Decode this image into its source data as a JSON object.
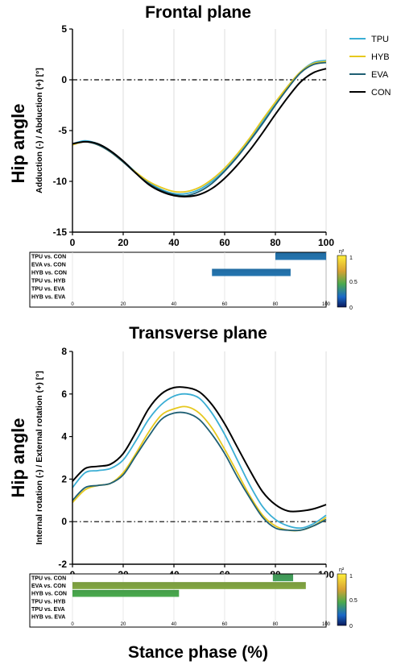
{
  "figure": {
    "xlabel": "Stance phase (%)",
    "side_label": "Hip angle",
    "legend": [
      "TPU",
      "HYB",
      "EVA",
      "CON"
    ]
  },
  "colors": {
    "TPU": "#3aaed4",
    "HYB": "#e6c81e",
    "EVA": "#1f5f73",
    "CON": "#000000"
  },
  "colorbar": {
    "symbol": "η²",
    "ticks": [
      "1",
      "0.5",
      "0"
    ]
  },
  "chart_data": [
    {
      "type": "line",
      "title": "Frontal plane",
      "ylabel": "Adduction (-) / Abduction (+) [°]",
      "xlim": [
        0,
        100
      ],
      "ylim": [
        -15,
        5
      ],
      "yticks": [
        "5",
        "0",
        "-5",
        "-10",
        "-15"
      ],
      "xticks": [
        "0",
        "20",
        "40",
        "60",
        "80",
        "100"
      ],
      "grid": "vertical",
      "legend_position": "top-right",
      "zero_line": true,
      "x": [
        0,
        5,
        10,
        15,
        20,
        25,
        30,
        35,
        40,
        45,
        50,
        55,
        60,
        65,
        70,
        75,
        80,
        85,
        90,
        95,
        100
      ],
      "series": [
        {
          "name": "TPU",
          "values": [
            -6.3,
            -6.0,
            -6.3,
            -7.0,
            -8.0,
            -9.1,
            -10.1,
            -10.8,
            -11.2,
            -11.2,
            -10.8,
            -10.0,
            -8.9,
            -7.5,
            -5.9,
            -4.1,
            -2.3,
            -0.6,
            0.8,
            1.7,
            1.9
          ]
        },
        {
          "name": "HYB",
          "values": [
            -6.4,
            -6.1,
            -6.4,
            -7.1,
            -8.1,
            -9.1,
            -10.0,
            -10.6,
            -11.0,
            -11.0,
            -10.6,
            -9.8,
            -8.7,
            -7.3,
            -5.7,
            -3.9,
            -2.2,
            -0.6,
            0.8,
            1.6,
            1.8
          ]
        },
        {
          "name": "EVA",
          "values": [
            -6.3,
            -6.1,
            -6.4,
            -7.1,
            -8.1,
            -9.2,
            -10.2,
            -10.9,
            -11.3,
            -11.4,
            -11.0,
            -10.2,
            -9.0,
            -7.6,
            -6.0,
            -4.3,
            -2.5,
            -0.8,
            0.7,
            1.5,
            1.7
          ]
        },
        {
          "name": "CON",
          "values": [
            -6.3,
            -6.1,
            -6.3,
            -7.0,
            -8.0,
            -9.2,
            -10.3,
            -11.0,
            -11.4,
            -11.5,
            -11.3,
            -10.7,
            -9.7,
            -8.4,
            -6.9,
            -5.2,
            -3.4,
            -1.7,
            -0.2,
            0.7,
            1.1
          ]
        }
      ],
      "spm": {
        "rows": [
          "TPU vs. CON",
          "EVA vs. CON",
          "HYB vs. CON",
          "TPU vs. HYB",
          "TPU vs. EVA",
          "HYB vs. EVA"
        ],
        "xticks": [
          "0",
          "20",
          "40",
          "60",
          "80",
          "100"
        ],
        "bands": [
          {
            "row": 0,
            "start": 80,
            "end": 100,
            "eta2": 0.25
          },
          {
            "row": 2,
            "start": 55,
            "end": 86,
            "eta2": 0.25
          }
        ]
      }
    },
    {
      "type": "line",
      "title": "Transverse plane",
      "ylabel": "Internal rotation (-) / External rotation (+) [°]",
      "xlim": [
        0,
        100
      ],
      "ylim": [
        -2,
        8
      ],
      "yticks": [
        "8",
        "6",
        "4",
        "2",
        "0",
        "-2"
      ],
      "xticks": [
        "0",
        "20",
        "40",
        "60",
        "80",
        "100"
      ],
      "grid": "vertical",
      "zero_line": true,
      "x": [
        0,
        5,
        10,
        15,
        20,
        25,
        30,
        35,
        40,
        45,
        50,
        55,
        60,
        65,
        70,
        75,
        80,
        85,
        90,
        95,
        100
      ],
      "series": [
        {
          "name": "TPU",
          "values": [
            1.6,
            2.3,
            2.4,
            2.5,
            2.9,
            3.8,
            4.8,
            5.5,
            5.9,
            6.0,
            5.8,
            5.1,
            4.1,
            2.9,
            1.7,
            0.7,
            0.1,
            -0.2,
            -0.3,
            -0.1,
            0.3
          ]
        },
        {
          "name": "HYB",
          "values": [
            0.9,
            1.5,
            1.7,
            1.8,
            2.3,
            3.2,
            4.2,
            5.0,
            5.3,
            5.4,
            5.1,
            4.4,
            3.4,
            2.3,
            1.2,
            0.3,
            -0.2,
            -0.4,
            -0.4,
            -0.2,
            0.2
          ]
        },
        {
          "name": "EVA",
          "values": [
            1.0,
            1.6,
            1.7,
            1.8,
            2.2,
            3.1,
            4.0,
            4.8,
            5.1,
            5.1,
            4.8,
            4.1,
            3.2,
            2.1,
            1.1,
            0.2,
            -0.3,
            -0.4,
            -0.4,
            -0.2,
            0.1
          ]
        },
        {
          "name": "CON",
          "values": [
            1.9,
            2.5,
            2.6,
            2.7,
            3.2,
            4.2,
            5.3,
            6.0,
            6.3,
            6.3,
            6.1,
            5.5,
            4.6,
            3.5,
            2.4,
            1.4,
            0.8,
            0.5,
            0.5,
            0.6,
            0.8
          ]
        }
      ],
      "spm": {
        "rows": [
          "TPU vs. CON",
          "EVA vs. CON",
          "HYB vs. CON",
          "TPU vs. HYB",
          "TPU vs. EVA",
          "HYB vs. EVA"
        ],
        "xticks": [
          "0",
          "20",
          "40",
          "60",
          "80",
          "100"
        ],
        "bands": [
          {
            "row": 0,
            "start": 79,
            "end": 87,
            "eta2": 0.42
          },
          {
            "row": 1,
            "start": 0,
            "end": 92,
            "eta2": 0.55
          },
          {
            "row": 2,
            "start": 0,
            "end": 42,
            "eta2": 0.45
          }
        ]
      }
    }
  ]
}
